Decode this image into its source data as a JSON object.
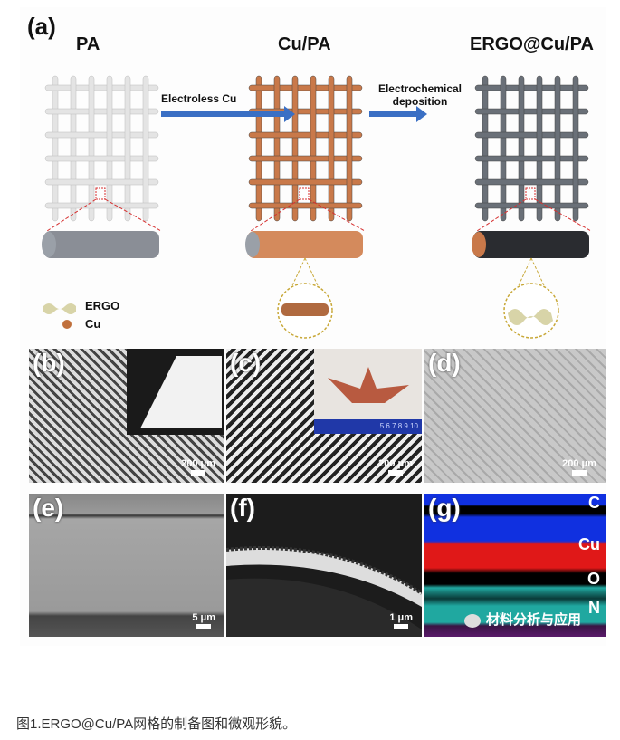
{
  "panel_a": {
    "label": "(a)",
    "stages": [
      "PA",
      "Cu/PA",
      "ERGO@Cu/PA"
    ],
    "arrow1_label": "Electroless Cu",
    "arrow2_label_line1": "Electrochemical",
    "arrow2_label_line2": "deposition",
    "legend": [
      {
        "label": "ERGO",
        "color": "#d8d4a8"
      },
      {
        "label": "Cu",
        "color": "#c0703c"
      }
    ],
    "colors": {
      "pa": "#e4e4e4",
      "cu": "#c9794a",
      "ergo": "#6a7078",
      "arrow": "#3a6fc4",
      "zoom_line": "#d63030",
      "zoom_circle": "#c8a838"
    }
  },
  "panels": [
    {
      "label": "(b)",
      "scale": "200 μm"
    },
    {
      "label": "(c)",
      "scale": "200 μm",
      "ruler_text": "5 6 7 8 9 10"
    },
    {
      "label": "(d)",
      "scale": "200 μm"
    },
    {
      "label": "(e)",
      "scale": "5 μm"
    },
    {
      "label": "(f)",
      "scale": "1 μm"
    },
    {
      "label": "(g)",
      "elements": [
        "C",
        "Cu",
        "O",
        "N"
      ],
      "element_colors": [
        "#1030e0",
        "#e01818",
        "#20a8a0",
        "#7a2a90"
      ]
    }
  ],
  "watermark": "材料分析与应用",
  "caption": "图1.ERGO@Cu/PA网格的制备图和微观形貌。"
}
